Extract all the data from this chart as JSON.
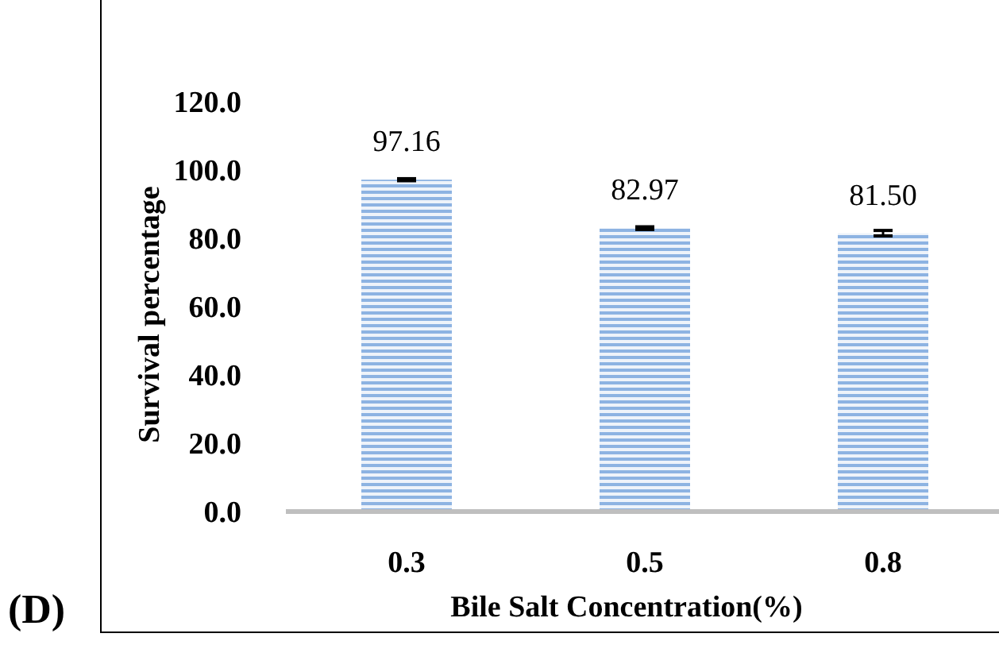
{
  "chart_data": {
    "type": "bar",
    "xlabel": "Bile Salt Concentration(%)",
    "ylabel": "Survival percentage",
    "annotations": [
      "(D)"
    ],
    "categories": [
      "0.3",
      "0.5",
      "0.8"
    ],
    "series": [
      {
        "color": "#8db3e2",
        "values": [
          97.16,
          82.97,
          81.5
        ],
        "errors": [
          0.3,
          0.4,
          0.8
        ],
        "value_labels": [
          "97.16",
          "82.97",
          "81.50"
        ]
      }
    ],
    "ylim": [
      0,
      120
    ],
    "yticks": [
      {
        "value": 0,
        "label": "0.0"
      },
      {
        "value": 20,
        "label": "20.0"
      },
      {
        "value": 40,
        "label": "40.0"
      },
      {
        "value": 60,
        "label": "60.0"
      },
      {
        "value": 80,
        "label": "80.0"
      },
      {
        "value": 100,
        "label": "100.0"
      },
      {
        "value": 120,
        "label": "120.0"
      }
    ],
    "grid": false
  }
}
